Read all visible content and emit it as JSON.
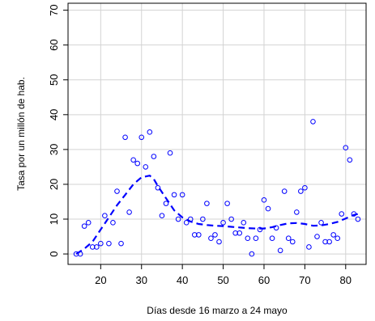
{
  "chart_data": {
    "type": "scatter",
    "xlabel": "Días desde 16 marzo a 24 mayo",
    "ylabel": "Tasa por un millón de hab.",
    "xlim": [
      12,
      85
    ],
    "ylim": [
      -3,
      72
    ],
    "xticks": [
      20,
      30,
      40,
      50,
      60,
      70,
      80
    ],
    "yticks": [
      0,
      10,
      20,
      30,
      40,
      50,
      60,
      70
    ],
    "grid": true,
    "colors": {
      "points": "#0000ff",
      "trend": "#0000ff",
      "grid": "#d3d3d3",
      "frame": "#000000"
    },
    "series": [
      {
        "mark": "point",
        "style": "open-circle",
        "x": [
          14,
          15,
          16,
          17,
          18,
          19,
          20,
          21,
          22,
          23,
          24,
          25,
          26,
          27,
          28,
          29,
          30,
          31,
          32,
          33,
          34,
          35,
          36,
          37,
          38,
          39,
          40,
          41,
          42,
          43,
          44,
          45,
          46,
          47,
          48,
          49,
          50,
          51,
          52,
          53,
          54,
          55,
          56,
          57,
          58,
          59,
          60,
          61,
          62,
          63,
          64,
          65,
          66,
          67,
          68,
          69,
          70,
          71,
          72,
          73,
          74,
          75,
          76,
          77,
          78,
          79,
          80,
          81,
          82,
          83
        ],
        "y": [
          0,
          0,
          8,
          9,
          2,
          2,
          3,
          11,
          3,
          9,
          18,
          3,
          33.5,
          12,
          27,
          26,
          33.5,
          25,
          35,
          28,
          19,
          11,
          14.5,
          29,
          17,
          10,
          17,
          9,
          10,
          5.5,
          5.5,
          10,
          14.5,
          4.5,
          5.5,
          3.5,
          9,
          14.5,
          10,
          6,
          6,
          9,
          4.5,
          0,
          4.5,
          7,
          15.5,
          13,
          4.5,
          7.5,
          1,
          18,
          4.5,
          3.5,
          12,
          18,
          19,
          2,
          38,
          5,
          9,
          3.5,
          3.5,
          5.5,
          4.5,
          11.5,
          30.5,
          27,
          11.5,
          10
        ]
      },
      {
        "mark": "line",
        "style": "dashed",
        "x": [
          14,
          16,
          18,
          20,
          22,
          24,
          26,
          28,
          30,
          32,
          33,
          34,
          36,
          38,
          40,
          42,
          44,
          46,
          48,
          50,
          52,
          54,
          56,
          58,
          60,
          62,
          64,
          66,
          68,
          70,
          72,
          74,
          76,
          78,
          80,
          82,
          83
        ],
        "y": [
          0,
          1.5,
          3.5,
          7,
          10.5,
          14,
          17,
          20,
          22,
          22.5,
          21.5,
          19.5,
          16,
          12.5,
          10.5,
          9.3,
          8.6,
          8.3,
          8.1,
          8,
          7.8,
          7.6,
          7.4,
          7.3,
          7.3,
          7.7,
          8.3,
          8.8,
          8.9,
          8.6,
          8.1,
          8.2,
          8.6,
          9.2,
          10.2,
          11.2,
          11.5
        ]
      }
    ]
  }
}
